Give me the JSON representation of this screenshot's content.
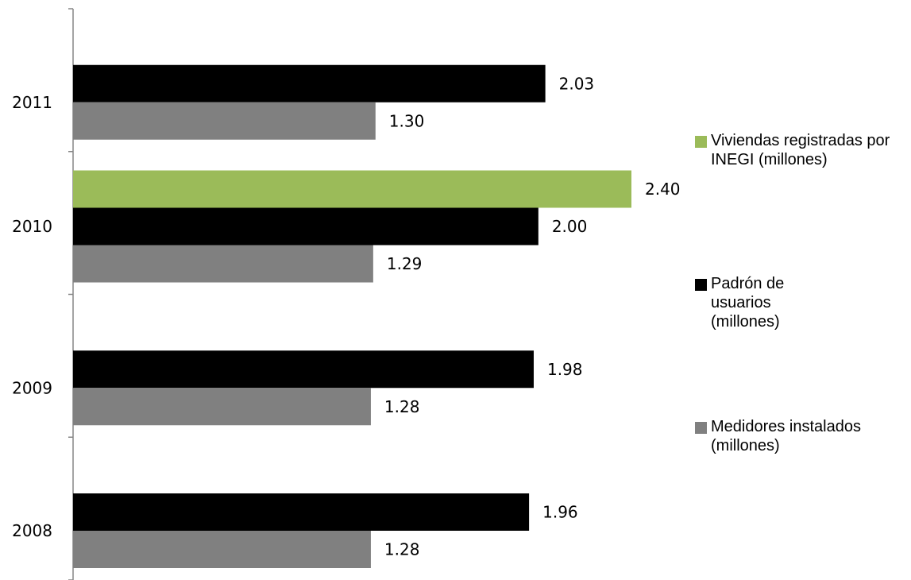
{
  "chart_data": {
    "type": "bar",
    "orientation": "horizontal",
    "categories": [
      "2008",
      "2009",
      "2010",
      "2011"
    ],
    "series": [
      {
        "name": "Viviendas registradas por INEGI (millones)",
        "color": "#9bbb59",
        "values": [
          null,
          null,
          2.4,
          null
        ],
        "labels": [
          null,
          null,
          "2.40",
          null
        ]
      },
      {
        "name": "Padrón de usuarios (millones)",
        "color": "#000000",
        "values": [
          1.96,
          1.98,
          2.0,
          2.03
        ],
        "labels": [
          "1.96",
          "1.98",
          "2.00",
          "2.03"
        ]
      },
      {
        "name": "Medidores instalados (millones)",
        "color": "#808080",
        "values": [
          1.28,
          1.28,
          1.29,
          1.3
        ],
        "labels": [
          "1.28",
          "1.28",
          "1.29",
          "1.30"
        ]
      }
    ],
    "xlim": [
      0,
      2.6
    ],
    "grid": false,
    "value_axis_visible": false,
    "legend_position": "right"
  }
}
